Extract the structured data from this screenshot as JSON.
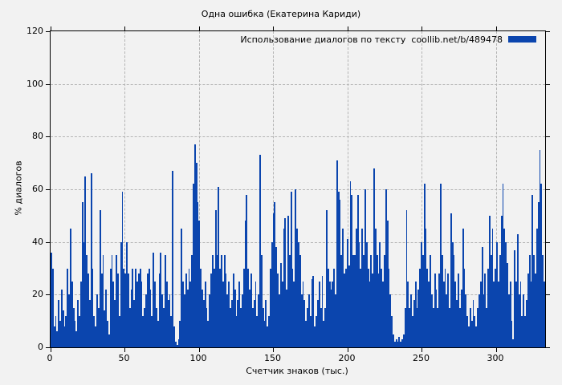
{
  "title": "Одна ошибка (Екатерина Кариди)",
  "legend": {
    "label": "Использование диалогов по тексту  coollib.net/b/489478",
    "swatch_color": "#0b45ae"
  },
  "axes": {
    "y": {
      "label": "% диалогов",
      "ticks": [
        0,
        20,
        40,
        60,
        80,
        100,
        120
      ],
      "min": 0,
      "max": 120
    },
    "x": {
      "label": "Счетчик знаков (тыс.)",
      "ticks": [
        0,
        50,
        100,
        150,
        200,
        250,
        300
      ],
      "min": 0,
      "max": 333
    }
  },
  "colors": {
    "bar": "#0b45ae",
    "grid": "#b4b4b4",
    "border": "#000000",
    "background": "#f2f2f2"
  },
  "chart_data": {
    "type": "bar",
    "title": "Одна ошибка (Екатерина Кариди)",
    "series_label": "Использование диалогов по тексту  coollib.net/b/489478",
    "xlabel": "Счетчик знаков (тыс.)",
    "ylabel": "% диалогов",
    "xlim": [
      0,
      333
    ],
    "ylim": [
      0,
      120
    ],
    "x_step": 1,
    "legend_position": "top-right",
    "grid": true,
    "values": [
      36,
      30,
      8,
      12,
      6,
      18,
      10,
      22,
      14,
      8,
      12,
      30,
      20,
      45,
      25,
      15,
      10,
      6,
      18,
      12,
      25,
      55,
      40,
      65,
      35,
      28,
      18,
      66,
      30,
      12,
      8,
      20,
      15,
      52,
      28,
      35,
      14,
      22,
      10,
      5,
      30,
      35,
      25,
      18,
      35,
      28,
      12,
      40,
      59,
      30,
      28,
      40,
      28,
      15,
      22,
      30,
      18,
      30,
      25,
      28,
      30,
      25,
      12,
      15,
      20,
      28,
      30,
      22,
      12,
      36,
      25,
      15,
      10,
      28,
      36,
      20,
      15,
      35,
      25,
      18,
      20,
      12,
      67,
      8,
      2,
      1,
      3,
      10,
      45,
      25,
      20,
      28,
      22,
      30,
      25,
      35,
      62,
      77,
      70,
      55,
      48,
      30,
      22,
      18,
      25,
      15,
      10,
      20,
      28,
      35,
      30,
      52,
      35,
      61,
      30,
      35,
      25,
      35,
      28,
      20,
      25,
      15,
      18,
      28,
      22,
      12,
      18,
      25,
      15,
      20,
      30,
      48,
      58,
      30,
      22,
      28,
      15,
      18,
      25,
      12,
      20,
      73,
      35,
      15,
      10,
      18,
      8,
      12,
      30,
      40,
      51,
      55,
      38,
      28,
      20,
      32,
      25,
      45,
      49,
      22,
      50,
      35,
      59,
      30,
      25,
      60,
      45,
      40,
      35,
      20,
      25,
      18,
      10,
      15,
      20,
      12,
      26,
      27,
      8,
      12,
      18,
      25,
      15,
      27,
      10,
      15,
      52,
      30,
      25,
      22,
      25,
      30,
      20,
      71,
      59,
      56,
      35,
      45,
      28,
      30,
      41,
      31,
      63,
      58,
      35,
      35,
      45,
      58,
      40,
      30,
      45,
      35,
      60,
      40,
      30,
      25,
      35,
      28,
      68,
      45,
      35,
      28,
      40,
      30,
      25,
      35,
      60,
      48,
      30,
      20,
      12,
      5,
      2,
      3,
      2,
      4,
      2,
      3,
      5,
      15,
      52,
      25,
      15,
      20,
      12,
      18,
      25,
      15,
      22,
      30,
      40,
      35,
      62,
      45,
      30,
      25,
      35,
      20,
      15,
      28,
      22,
      15,
      28,
      62,
      35,
      25,
      30,
      20,
      28,
      15,
      51,
      40,
      35,
      25,
      18,
      28,
      15,
      22,
      45,
      30,
      20,
      12,
      8,
      15,
      10,
      18,
      12,
      8,
      15,
      20,
      25,
      38,
      20,
      28,
      15,
      30,
      50,
      35,
      45,
      25,
      30,
      40,
      25,
      35,
      50,
      62,
      45,
      40,
      32,
      20,
      25,
      10,
      3,
      37,
      25,
      43,
      20,
      25,
      12,
      20,
      12,
      18,
      28,
      35,
      25,
      58,
      35,
      28,
      45,
      55,
      75,
      62,
      35,
      25
    ]
  }
}
